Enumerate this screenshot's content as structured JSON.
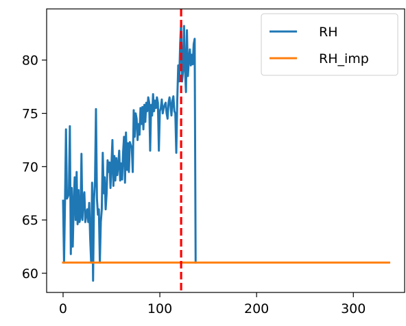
{
  "chart_data": {
    "type": "line",
    "xlim": [
      -17,
      353
    ],
    "ylim": [
      58.2,
      84.8
    ],
    "x_ticks": [
      0,
      100,
      200,
      300
    ],
    "y_ticks": [
      60,
      65,
      70,
      75,
      80
    ],
    "grid": false,
    "legend": {
      "position": "top-right",
      "entries": [
        "RH",
        "RH_imp"
      ]
    },
    "vline": {
      "x": 122,
      "color": "#ff0000",
      "style": "dashed"
    },
    "series": [
      {
        "name": "RH",
        "color": "#1f77b4",
        "x": [
          0,
          1,
          2,
          3,
          4,
          5,
          6,
          7,
          8,
          9,
          10,
          11,
          12,
          13,
          14,
          15,
          16,
          17,
          18,
          19,
          20,
          21,
          22,
          23,
          24,
          25,
          26,
          27,
          28,
          29,
          30,
          31,
          32,
          33,
          34,
          35,
          36,
          37,
          38,
          39,
          40,
          41,
          42,
          43,
          44,
          45,
          46,
          47,
          48,
          49,
          50,
          51,
          52,
          53,
          54,
          55,
          56,
          57,
          58,
          59,
          60,
          61,
          62,
          63,
          64,
          65,
          66,
          67,
          68,
          69,
          70,
          71,
          72,
          73,
          74,
          75,
          76,
          77,
          78,
          79,
          80,
          81,
          82,
          83,
          84,
          85,
          86,
          87,
          88,
          89,
          90,
          91,
          92,
          93,
          94,
          95,
          96,
          97,
          98,
          99,
          100,
          101,
          102,
          103,
          104,
          105,
          106,
          107,
          108,
          109,
          110,
          111,
          112,
          113,
          114,
          115,
          116,
          117,
          118,
          119,
          120,
          121,
          122,
          123,
          124,
          125,
          126,
          127,
          128,
          129,
          130,
          131,
          132,
          133,
          134,
          135,
          136,
          137
        ],
        "values": [
          66.8,
          61.0,
          66.7,
          73.5,
          67.0,
          67.2,
          67.5,
          73.8,
          61.8,
          68.0,
          62.5,
          66.5,
          69.0,
          65.0,
          69.5,
          64.6,
          67.8,
          64.8,
          65.3,
          71.2,
          65.0,
          67.0,
          67.6,
          64.8,
          65.6,
          66.0,
          64.8,
          66.6,
          63.3,
          61.0,
          68.5,
          59.3,
          67.0,
          68.6,
          75.4,
          67.0,
          65.5,
          66.0,
          61.0,
          64.8,
          66.0,
          71.3,
          67.5,
          69.0,
          66.0,
          67.5,
          70.6,
          69.5,
          70.4,
          68.0,
          70.2,
          72.5,
          68.2,
          71.0,
          68.7,
          70.8,
          69.2,
          70.2,
          71.5,
          68.7,
          70.3,
          68.8,
          71.3,
          72.8,
          68.5,
          73.2,
          69.7,
          72.2,
          69.5,
          72.3,
          72.0,
          71.8,
          69.5,
          75.3,
          72.8,
          75.0,
          74.5,
          72.5,
          74.0,
          73.0,
          75.5,
          74.0,
          75.6,
          73.5,
          75.8,
          74.2,
          76.0,
          75.2,
          76.5,
          76.0,
          71.5,
          75.8,
          74.8,
          76.8,
          75.2,
          76.2,
          75.5,
          76.5,
          76.0,
          71.5,
          75.2,
          75.5,
          76.3,
          75.0,
          75.5,
          75.8,
          76.0,
          75.0,
          74.5,
          76.0,
          76.5,
          75.8,
          74.8,
          76.2,
          76.6,
          75.2,
          75.0,
          71.3,
          76.2,
          79.5,
          78.0,
          81.5,
          83.5,
          78.0,
          79.0,
          83.2,
          79.2,
          77.0,
          82.8,
          78.5,
          80.0,
          81.0,
          79.5,
          80.5,
          79.6,
          81.5,
          82.0,
          61.0
        ]
      },
      {
        "name": "RH_imp",
        "color": "#ff7f0e",
        "x": [
          0,
          337
        ],
        "values": [
          61.0,
          61.0
        ]
      }
    ]
  }
}
